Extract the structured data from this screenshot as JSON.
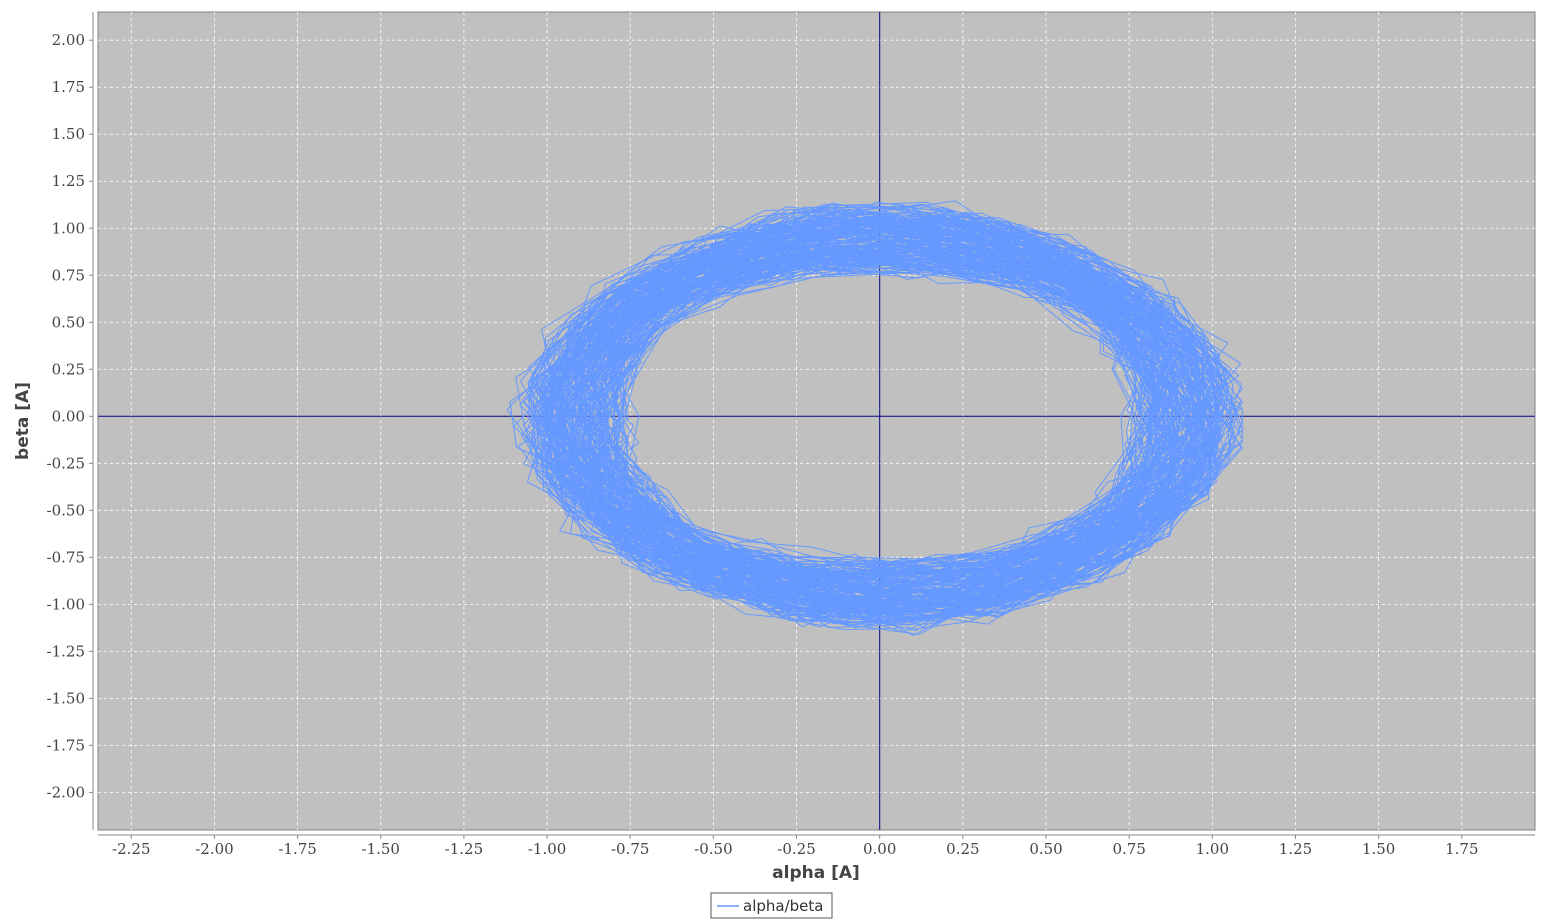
{
  "chart_data": {
    "type": "line",
    "xlabel": "alpha [A]",
    "ylabel": "beta [A]",
    "xlim": [
      -2.35,
      1.97
    ],
    "ylim": [
      -2.2,
      2.15
    ],
    "x_ticks": [
      "-2.25",
      "-2.00",
      "-1.75",
      "-1.50",
      "-1.25",
      "-1.00",
      "-0.75",
      "-0.50",
      "-0.25",
      "0.00",
      "0.25",
      "0.50",
      "0.75",
      "1.00",
      "1.25",
      "1.50",
      "1.75"
    ],
    "y_ticks": [
      "2.00",
      "1.75",
      "1.50",
      "1.25",
      "1.00",
      "0.75",
      "0.50",
      "0.25",
      "0.00",
      "-0.25",
      "-0.50",
      "-0.75",
      "-1.00",
      "-1.25",
      "-1.50",
      "-1.75",
      "-2.00"
    ],
    "grid": true,
    "zero_lines": true,
    "plot_background": "#c0c0c0",
    "grid_color": "#ffffff",
    "zero_line_color": "#000080",
    "legend_position": "bottom-center",
    "series": [
      {
        "name": "alpha/beta",
        "color": "#6699ff",
        "shape": "noisy ellipse (Lissajous orbit)",
        "center": [
          0.0,
          0.0
        ],
        "radius_alpha_range": [
          0.75,
          1.1
        ],
        "radius_beta_range": [
          0.75,
          1.15
        ],
        "extremes": {
          "alpha_min": -1.12,
          "alpha_max": 1.09,
          "beta_min": -1.2,
          "beta_max": 1.15
        }
      }
    ]
  }
}
